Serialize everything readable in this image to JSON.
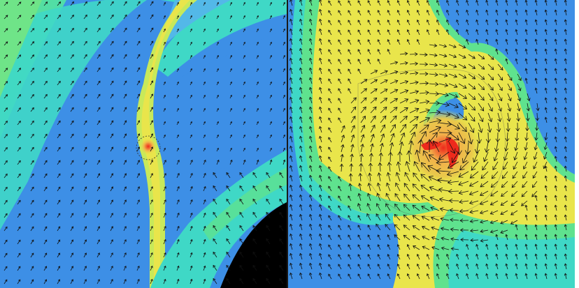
{
  "figure": {
    "panels": [
      {
        "name": "overview-flow-field"
      },
      {
        "name": "zoomed-flow-field"
      }
    ],
    "colors": {
      "blue": "#3d8fe6",
      "light_blue": "#53b8e8",
      "cyan": "#3fd8c6",
      "green": "#5fe28e",
      "yellow_green": "#c8e95a",
      "yellow": "#e9e54b",
      "orange": "#f2b04a",
      "red": "#ee2a1c",
      "arrow": "#111111",
      "black": "#000000"
    },
    "glyphs": {
      "arrow_icon": "vector-arrow"
    }
  }
}
